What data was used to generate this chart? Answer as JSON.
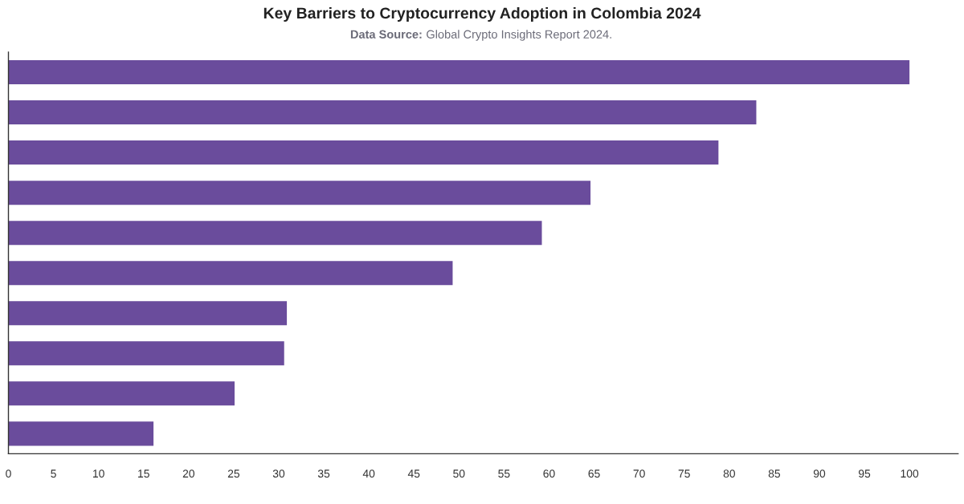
{
  "chart_data": {
    "type": "bar",
    "orientation": "horizontal",
    "title": "Key Barriers to Cryptocurrency Adoption in Colombia 2024",
    "subtitle": "Data Source: Global Crypto Insights Report 2024.",
    "categories": [
      null,
      null,
      null,
      null,
      null,
      null,
      null,
      null,
      null,
      null
    ],
    "values": [
      100.0,
      83.0,
      78.8,
      64.6,
      59.2,
      49.3,
      30.9,
      30.6,
      25.1,
      16.1
    ],
    "color": "#6a4c9c",
    "xlim": [
      0,
      105.4
    ],
    "xticks": [
      0,
      5,
      10,
      15,
      20,
      25,
      30,
      35,
      40,
      45,
      50,
      55,
      60,
      65,
      70,
      75,
      80,
      85,
      90,
      95,
      100
    ],
    "tick_labels": "x",
    "grid": false
  }
}
